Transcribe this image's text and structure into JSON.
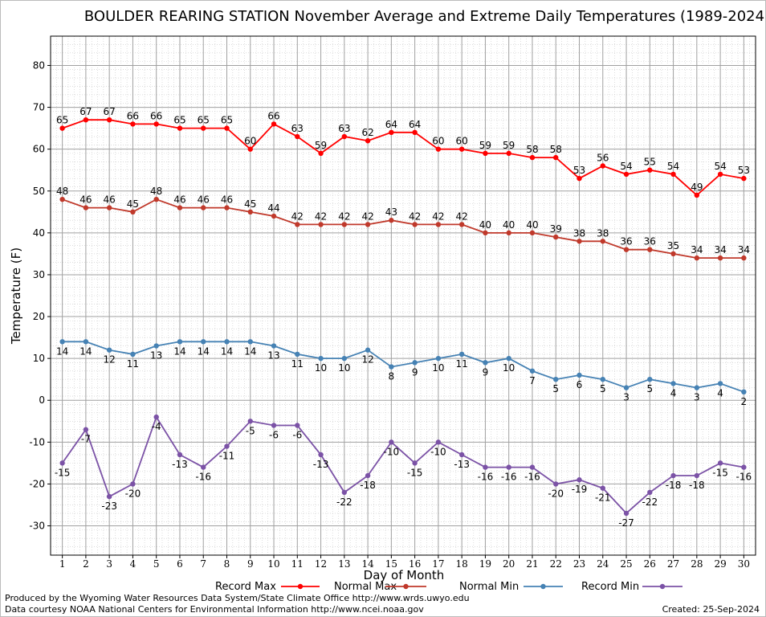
{
  "footer": {
    "produced_by": "Produced by the Wyoming Water Resources Data System/State Climate Office http://www.wrds.uwyo.edu",
    "courtesy": "Data courtesy NOAA National Centers for Environmental Information http://www.ncei.noaa.gov",
    "created": "Created:  25-Sep-2024"
  },
  "colors": {
    "record_max": "#ff0000",
    "normal_max": "#c0392b",
    "normal_min": "#4682b4",
    "record_min": "#7b52a6"
  },
  "chart_data": {
    "type": "line",
    "title": "BOULDER REARING STATION November Average and Extreme Daily Temperatures (1989-2024)",
    "xlabel": "Day of Month",
    "ylabel": "Temperature (F)",
    "x": [
      1,
      2,
      3,
      4,
      5,
      6,
      7,
      8,
      9,
      10,
      11,
      12,
      13,
      14,
      15,
      16,
      17,
      18,
      19,
      20,
      21,
      22,
      23,
      24,
      25,
      26,
      27,
      28,
      29,
      30
    ],
    "xlim": [
      0.5,
      30.5
    ],
    "ylim": [
      -37,
      87
    ],
    "yticks": [
      -30,
      -20,
      -10,
      0,
      10,
      20,
      30,
      40,
      50,
      60,
      70,
      80
    ],
    "grid": true,
    "legend_position": "bottom",
    "series": [
      {
        "name": "Record Max",
        "color": "#ff0000",
        "values": [
          65,
          67,
          67,
          66,
          66,
          65,
          65,
          65,
          60,
          66,
          63,
          59,
          63,
          62,
          64,
          64,
          60,
          60,
          59,
          59,
          58,
          58,
          53,
          56,
          54,
          55,
          54,
          49,
          54,
          53
        ]
      },
      {
        "name": "Normal Max",
        "color": "#c0392b",
        "values": [
          48,
          46,
          46,
          45,
          48,
          46,
          46,
          46,
          45,
          44,
          42,
          42,
          42,
          42,
          43,
          42,
          42,
          42,
          40,
          40,
          40,
          39,
          38,
          38,
          36,
          36,
          35,
          34,
          34,
          34
        ]
      },
      {
        "name": "Normal Min",
        "color": "#4682b4",
        "values": [
          14,
          14,
          12,
          11,
          13,
          14,
          14,
          14,
          14,
          13,
          11,
          10,
          10,
          12,
          8,
          9,
          10,
          11,
          9,
          10,
          7,
          5,
          6,
          5,
          3,
          5,
          4,
          3,
          4,
          2
        ]
      },
      {
        "name": "Record Min",
        "color": "#7b52a6",
        "values": [
          -15,
          -7,
          -23,
          -20,
          -4,
          -13,
          -16,
          -11,
          -5,
          -6,
          -6,
          -13,
          -22,
          -18,
          -10,
          -15,
          -10,
          -13,
          -16,
          -16,
          -16,
          -20,
          -19,
          -21,
          -27,
          -22,
          -18,
          -18,
          -15,
          -16
        ]
      }
    ]
  }
}
